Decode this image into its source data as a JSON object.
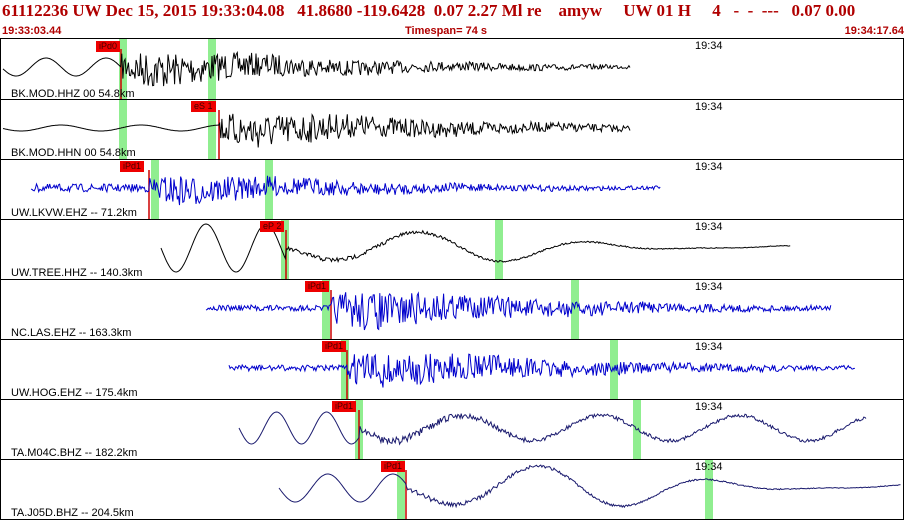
{
  "header": {
    "title": "61112236 UW Dec 15, 2015 19:33:04.08   41.8680 -119.6428  0.07 2.27 Ml re    amyw     UW 01 H     4   -  -  ---   0.07 0.00",
    "start_time": "19:33:03.44",
    "timespan": "Timespan=  74 s",
    "end_time": "19:34:17.64"
  },
  "colors": {
    "header_text": "#b00000",
    "pick_flag": "#ee0000",
    "window": "#90ee90",
    "trace_black": "#000000",
    "trace_blue": "#0000cc",
    "trace_navy": "#1a1a6e"
  },
  "panels": [
    {
      "label": "BK.MOD.HHZ 00 54.8km",
      "time": "19:34",
      "pick": "iPd0",
      "color": "#000000"
    },
    {
      "label": "BK.MOD.HHN 00 54.8km",
      "time": "19:34",
      "pick": "eS 1",
      "color": "#000000"
    },
    {
      "label": "UW.LKVW.EHZ -- 71.2km",
      "time": "19:34",
      "pick": "iPd1",
      "color": "#0000cc"
    },
    {
      "label": "UW.TREE.HHZ -- 140.3km",
      "time": "19:34",
      "pick": "eP 2",
      "color": "#000000"
    },
    {
      "label": "NC.LAS.EHZ -- 163.3km",
      "time": "19:34",
      "pick": "iPd1",
      "color": "#0000cc"
    },
    {
      "label": "UW.HOG.EHZ -- 175.4km",
      "time": "19:34",
      "pick": "iPd1",
      "color": "#0000cc"
    },
    {
      "label": "TA.M04C.BHZ -- 182.2km",
      "time": "19:34",
      "pick": "iPd1",
      "color": "#1a1a6e"
    },
    {
      "label": "TA.J05D.BHZ -- 204.5km",
      "time": "19:34",
      "pick": "iPd1",
      "color": "#1a1a6e"
    }
  ]
}
